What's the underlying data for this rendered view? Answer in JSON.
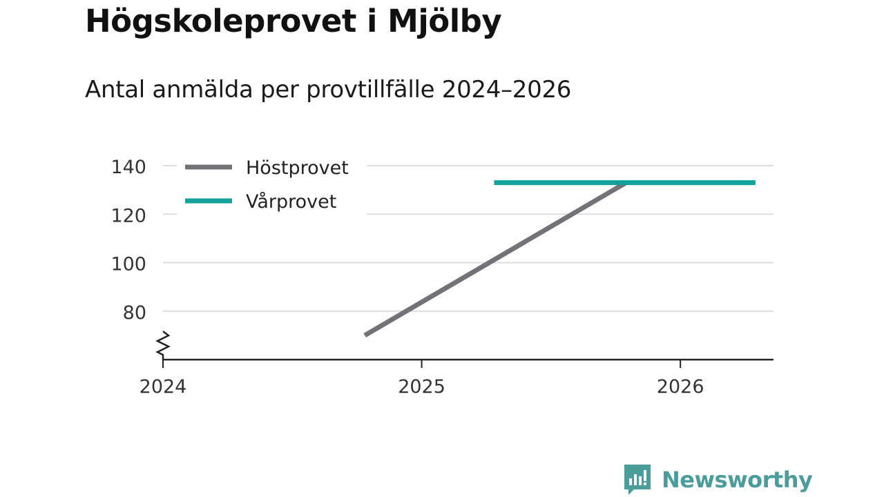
{
  "header": {
    "title": "Högskoleprovet i Mjölby",
    "subtitle": "Antal anmälda per provtillfälle 2024–2026"
  },
  "brand": {
    "name": "Newsworthy",
    "color": "#4a9d9a"
  },
  "chart_data": {
    "type": "line",
    "title": "Högskoleprovet i Mjölby",
    "subtitle": "Antal anmälda per provtillfälle 2024–2026",
    "xlabel": "",
    "ylabel": "",
    "xlim": [
      2024,
      2026.36
    ],
    "ylim": [
      60,
      140
    ],
    "x_ticks": [
      2024,
      2025,
      2026
    ],
    "y_ticks": [
      80,
      100,
      120,
      140
    ],
    "y_axis_break": true,
    "grid": true,
    "legend_position": "top-left",
    "series": [
      {
        "name": "Höstprovet",
        "color": "#737278",
        "points": [
          {
            "x": 2024.78,
            "y": 70
          },
          {
            "x": 2025.79,
            "y": 133
          }
        ]
      },
      {
        "name": "Vårprovet",
        "color": "#11a29b",
        "points": [
          {
            "x": 2025.28,
            "y": 133
          },
          {
            "x": 2026.29,
            "y": 133
          }
        ]
      }
    ]
  }
}
